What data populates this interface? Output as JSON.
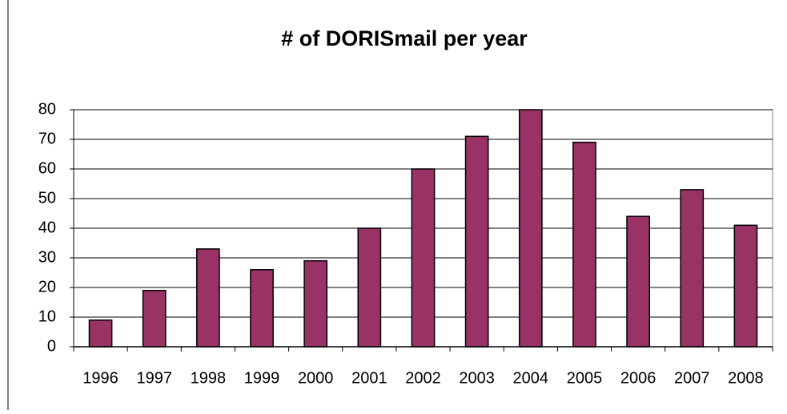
{
  "chart_data": {
    "type": "bar",
    "title": "# of DORISmail per year",
    "categories": [
      "1996",
      "1997",
      "1998",
      "1999",
      "2000",
      "2001",
      "2002",
      "2003",
      "2004",
      "2005",
      "2006",
      "2007",
      "2008"
    ],
    "values": [
      9,
      19,
      33,
      26,
      29,
      40,
      60,
      71,
      80,
      69,
      44,
      53,
      41
    ],
    "color": "#993366",
    "ylim": [
      0,
      80
    ],
    "yticks": [
      0,
      10,
      20,
      30,
      40,
      50,
      60,
      70,
      80
    ],
    "grid": true
  }
}
